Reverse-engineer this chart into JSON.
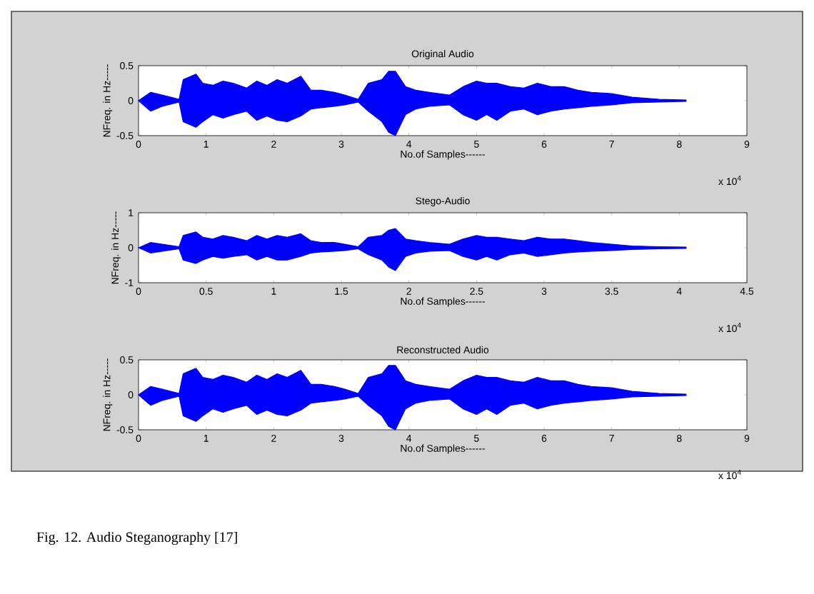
{
  "chart_data": [
    {
      "type": "area",
      "title": "Original Audio",
      "xlabel": "No.of Samples------",
      "ylabel": "NFreq. in Hz-----",
      "xlim": [
        0,
        9
      ],
      "ylim": [
        -0.5,
        0.5
      ],
      "xticks": [
        0,
        1,
        2,
        3,
        4,
        5,
        6,
        7,
        8,
        9
      ],
      "yticks": [
        -0.5,
        0,
        0.5
      ],
      "annotations": [
        "x 10$^{4}$"
      ],
      "x": [
        0,
        0.18,
        0.35,
        0.6,
        0.66,
        0.85,
        0.95,
        1.1,
        1.25,
        1.4,
        1.6,
        1.75,
        1.9,
        2.05,
        2.2,
        2.4,
        2.55,
        2.7,
        2.9,
        3.05,
        3.25,
        3.4,
        3.6,
        3.7,
        3.8,
        3.95,
        4.1,
        4.3,
        4.6,
        4.8,
        5.0,
        5.15,
        5.3,
        5.5,
        5.7,
        5.9,
        6.1,
        6.3,
        6.5,
        6.7,
        7.0,
        7.3,
        7.7,
        8.1
      ],
      "series": [
        {
          "color": "#0000ff",
          "values": [
            0,
            0.12,
            0.08,
            0.02,
            0.3,
            0.38,
            0.25,
            0.22,
            0.28,
            0.25,
            0.18,
            0.28,
            0.22,
            0.3,
            0.25,
            0.35,
            0.15,
            0.15,
            0.12,
            0.08,
            0.02,
            0.25,
            0.3,
            0.42,
            0.42,
            0.2,
            0.15,
            0.12,
            0.08,
            0.2,
            0.28,
            0.25,
            0.25,
            0.2,
            0.18,
            0.25,
            0.2,
            0.2,
            0.15,
            0.12,
            0.1,
            0.05,
            0.02,
            0.01
          ]
        },
        {
          "color": "#0000ff",
          "values": [
            0,
            -0.15,
            -0.08,
            -0.02,
            -0.3,
            -0.38,
            -0.3,
            -0.2,
            -0.25,
            -0.2,
            -0.15,
            -0.28,
            -0.22,
            -0.28,
            -0.3,
            -0.22,
            -0.12,
            -0.1,
            -0.08,
            -0.06,
            -0.02,
            -0.15,
            -0.3,
            -0.45,
            -0.5,
            -0.2,
            -0.12,
            -0.08,
            -0.06,
            -0.2,
            -0.28,
            -0.2,
            -0.28,
            -0.15,
            -0.12,
            -0.2,
            -0.15,
            -0.12,
            -0.1,
            -0.08,
            -0.06,
            -0.03,
            -0.02,
            -0.01
          ]
        }
      ]
    },
    {
      "type": "area",
      "title": "Stego-Audio",
      "xlabel": "No.of Samples------",
      "ylabel": "NFreq. in Hz-----",
      "xlim": [
        0,
        4.5
      ],
      "ylim": [
        -1,
        1
      ],
      "xticks": [
        0,
        0.5,
        1,
        1.5,
        2,
        2.5,
        3,
        3.5,
        4,
        4.5
      ],
      "yticks": [
        -1,
        0,
        1
      ],
      "annotations": [
        "x 10$^{4}$"
      ],
      "x": [
        0,
        0.09,
        0.175,
        0.3,
        0.33,
        0.425,
        0.475,
        0.55,
        0.625,
        0.7,
        0.8,
        0.875,
        0.95,
        1.025,
        1.1,
        1.2,
        1.275,
        1.35,
        1.45,
        1.525,
        1.625,
        1.7,
        1.8,
        1.85,
        1.9,
        1.975,
        2.05,
        2.15,
        2.3,
        2.4,
        2.5,
        2.575,
        2.65,
        2.75,
        2.85,
        2.95,
        3.05,
        3.15,
        3.25,
        3.35,
        3.5,
        3.65,
        3.85,
        4.05
      ],
      "series": [
        {
          "color": "#0000ff",
          "values": [
            0,
            0.15,
            0.1,
            0.03,
            0.35,
            0.45,
            0.3,
            0.25,
            0.35,
            0.3,
            0.2,
            0.35,
            0.25,
            0.35,
            0.3,
            0.4,
            0.2,
            0.15,
            0.15,
            0.1,
            0.03,
            0.3,
            0.35,
            0.5,
            0.55,
            0.25,
            0.2,
            0.15,
            0.1,
            0.25,
            0.35,
            0.3,
            0.3,
            0.25,
            0.2,
            0.3,
            0.25,
            0.25,
            0.2,
            0.15,
            0.1,
            0.05,
            0.03,
            0.02
          ]
        },
        {
          "color": "#0000ff",
          "values": [
            0,
            -0.15,
            -0.1,
            -0.03,
            -0.35,
            -0.45,
            -0.35,
            -0.25,
            -0.3,
            -0.25,
            -0.2,
            -0.35,
            -0.25,
            -0.35,
            -0.35,
            -0.25,
            -0.15,
            -0.12,
            -0.1,
            -0.08,
            -0.03,
            -0.2,
            -0.35,
            -0.55,
            -0.65,
            -0.25,
            -0.15,
            -0.1,
            -0.08,
            -0.25,
            -0.35,
            -0.25,
            -0.35,
            -0.2,
            -0.15,
            -0.25,
            -0.2,
            -0.15,
            -0.12,
            -0.1,
            -0.08,
            -0.05,
            -0.03,
            -0.02
          ]
        }
      ]
    },
    {
      "type": "area",
      "title": "Reconstructed Audio",
      "xlabel": "No.of Samples------",
      "ylabel": "NFreq. in Hz-----",
      "xlim": [
        0,
        9
      ],
      "ylim": [
        -0.5,
        0.5
      ],
      "xticks": [
        0,
        1,
        2,
        3,
        4,
        5,
        6,
        7,
        8,
        9
      ],
      "yticks": [
        -0.5,
        0,
        0.5
      ],
      "annotations": [
        "x 10$^{4}$",
        "Fig. 12. Audio Steganography [17]"
      ],
      "x": [
        0,
        0.18,
        0.35,
        0.6,
        0.66,
        0.85,
        0.95,
        1.1,
        1.25,
        1.4,
        1.6,
        1.75,
        1.9,
        2.05,
        2.2,
        2.4,
        2.55,
        2.7,
        2.9,
        3.05,
        3.25,
        3.4,
        3.6,
        3.7,
        3.8,
        3.95,
        4.1,
        4.3,
        4.6,
        4.8,
        5.0,
        5.15,
        5.3,
        5.5,
        5.7,
        5.9,
        6.1,
        6.3,
        6.5,
        6.7,
        7.0,
        7.3,
        7.7,
        8.1
      ],
      "series": [
        {
          "color": "#0000ff",
          "values": [
            0,
            0.12,
            0.08,
            0.02,
            0.3,
            0.38,
            0.25,
            0.22,
            0.28,
            0.25,
            0.18,
            0.28,
            0.22,
            0.3,
            0.25,
            0.35,
            0.15,
            0.15,
            0.12,
            0.08,
            0.02,
            0.25,
            0.3,
            0.42,
            0.42,
            0.2,
            0.15,
            0.12,
            0.08,
            0.2,
            0.28,
            0.25,
            0.25,
            0.2,
            0.18,
            0.25,
            0.2,
            0.2,
            0.15,
            0.12,
            0.1,
            0.05,
            0.02,
            0.01
          ]
        },
        {
          "color": "#0000ff",
          "values": [
            0,
            -0.15,
            -0.08,
            -0.02,
            -0.3,
            -0.38,
            -0.3,
            -0.2,
            -0.25,
            -0.2,
            -0.15,
            -0.28,
            -0.22,
            -0.28,
            -0.3,
            -0.22,
            -0.12,
            -0.1,
            -0.08,
            -0.06,
            -0.02,
            -0.15,
            -0.3,
            -0.45,
            -0.5,
            -0.2,
            -0.12,
            -0.08,
            -0.06,
            -0.2,
            -0.28,
            -0.2,
            -0.28,
            -0.15,
            -0.12,
            -0.2,
            -0.15,
            -0.12,
            -0.1,
            -0.08,
            -0.06,
            -0.03,
            -0.02,
            -0.01
          ]
        }
      ]
    }
  ]
}
